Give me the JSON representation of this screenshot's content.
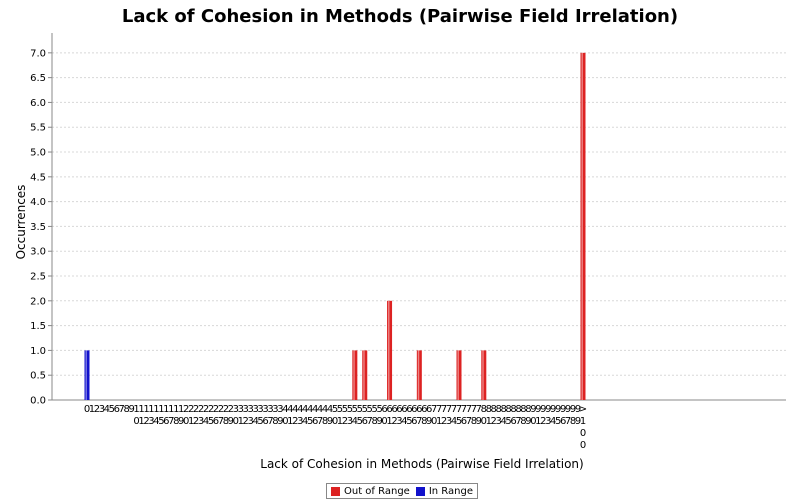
{
  "chart_data": {
    "type": "bar",
    "title": "Lack of Cohesion in Methods (Pairwise Field Irrelation)",
    "xlabel": "Lack of Cohesion in Methods (Pairwise Field Irrelation)",
    "ylabel": "Occurrences",
    "ylim": [
      0,
      7.4
    ],
    "yticks": [
      "0.0",
      "0.5",
      "1.0",
      "1.5",
      "2.0",
      "2.5",
      "3.0",
      "3.5",
      "4.0",
      "4.5",
      "5.0",
      "5.5",
      "6.0",
      "6.5",
      "7.0"
    ],
    "categories": [
      "0",
      "1",
      "2",
      "3",
      "4",
      "5",
      "6",
      "7",
      "8",
      "9",
      "10",
      "11",
      "12",
      "13",
      "14",
      "15",
      "16",
      "17",
      "18",
      "19",
      "20",
      "21",
      "22",
      "23",
      "24",
      "25",
      "26",
      "27",
      "28",
      "29",
      "30",
      "31",
      "32",
      "33",
      "34",
      "35",
      "36",
      "37",
      "38",
      "39",
      "40",
      "41",
      "42",
      "43",
      "44",
      "45",
      "46",
      "47",
      "48",
      "49",
      "50",
      "51",
      "52",
      "53",
      "54",
      "55",
      "56",
      "57",
      "58",
      "59",
      "60",
      "61",
      "62",
      "63",
      "64",
      "65",
      "66",
      "67",
      "68",
      "69",
      "70",
      "71",
      "72",
      "73",
      "74",
      "75",
      "76",
      "77",
      "78",
      "79",
      "80",
      "81",
      "82",
      "83",
      "84",
      "85",
      "86",
      "87",
      "88",
      "89",
      "90",
      "91",
      "92",
      "93",
      "94",
      "95",
      "96",
      "97",
      "98",
      "99",
      ">100"
    ],
    "series": [
      {
        "name": "Out of Range",
        "color": "#dd2222",
        "values": {
          "54": 1,
          "56": 1,
          "61": 2,
          "67": 1,
          "75": 1,
          "80": 1,
          ">100": 7
        }
      },
      {
        "name": "In Range",
        "color": "#1111cc",
        "values": {
          "0": 1
        }
      }
    ],
    "grid": true,
    "legend": "bottom-center"
  }
}
